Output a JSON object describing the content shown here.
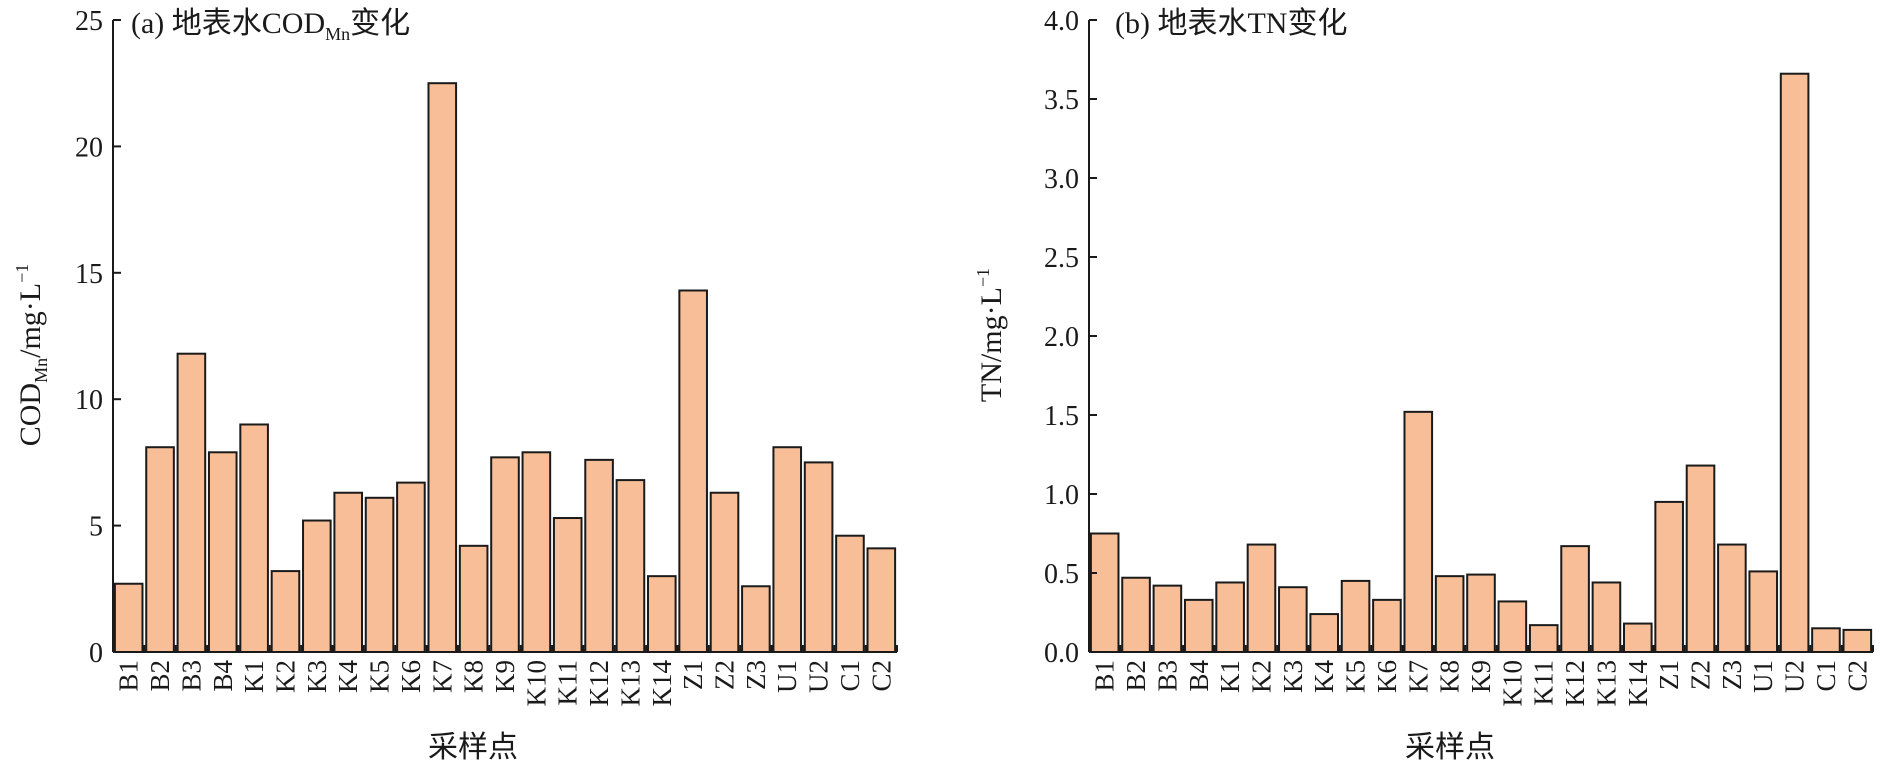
{
  "chart_data": [
    {
      "type": "bar",
      "title": "(a) 地表水COD",
      "title_subscript": "Mn",
      "title_suffix": "变化",
      "ylabel": "COD",
      "ylabel_subscript": "Mn",
      "ylabel_suffix": "/mg·L",
      "ylabel_superscript": "−1",
      "xlabel": "采样点",
      "ylim": [
        0,
        25
      ],
      "yticks": [
        "0",
        "5",
        "10",
        "15",
        "20",
        "25"
      ],
      "categories": [
        "B1",
        "B2",
        "B3",
        "B4",
        "K1",
        "K2",
        "K3",
        "K4",
        "K5",
        "K6",
        "K7",
        "K8",
        "K9",
        "K10",
        "K11",
        "K12",
        "K13",
        "K14",
        "Z1",
        "Z2",
        "Z3",
        "U1",
        "U2",
        "C1",
        "C2"
      ],
      "values": [
        2.7,
        8.1,
        11.8,
        7.9,
        9.0,
        3.2,
        5.2,
        6.3,
        6.1,
        6.7,
        22.5,
        4.2,
        7.7,
        7.9,
        5.3,
        7.6,
        6.8,
        3.0,
        14.3,
        6.3,
        2.6,
        8.1,
        7.5,
        4.6,
        4.1
      ],
      "bar_color": "#F7BE97",
      "bar_edge": "#1a1a1a",
      "grid": false
    },
    {
      "type": "bar",
      "title": "(b) 地表水TN变化",
      "ylabel": "TN/mg·L",
      "ylabel_superscript": "−1",
      "xlabel": "采样点",
      "ylim": [
        0,
        4.0
      ],
      "yticks": [
        "0.0",
        "0.5",
        "1.0",
        "1.5",
        "2.0",
        "2.5",
        "3.0",
        "3.5",
        "4.0"
      ],
      "categories": [
        "B1",
        "B2",
        "B3",
        "B4",
        "K1",
        "K2",
        "K3",
        "K4",
        "K5",
        "K6",
        "K7",
        "K8",
        "K9",
        "K10",
        "K11",
        "K12",
        "K13",
        "K14",
        "Z1",
        "Z2",
        "Z3",
        "U1",
        "U2",
        "C1",
        "C2"
      ],
      "values": [
        0.75,
        0.47,
        0.42,
        0.33,
        0.44,
        0.68,
        0.41,
        0.24,
        0.45,
        0.33,
        1.52,
        0.48,
        0.49,
        0.32,
        0.17,
        0.67,
        0.44,
        0.18,
        0.95,
        1.18,
        0.68,
        0.51,
        3.66,
        0.15,
        0.14
      ],
      "bar_color": "#F7BE97",
      "bar_edge": "#1a1a1a",
      "grid": false
    }
  ]
}
